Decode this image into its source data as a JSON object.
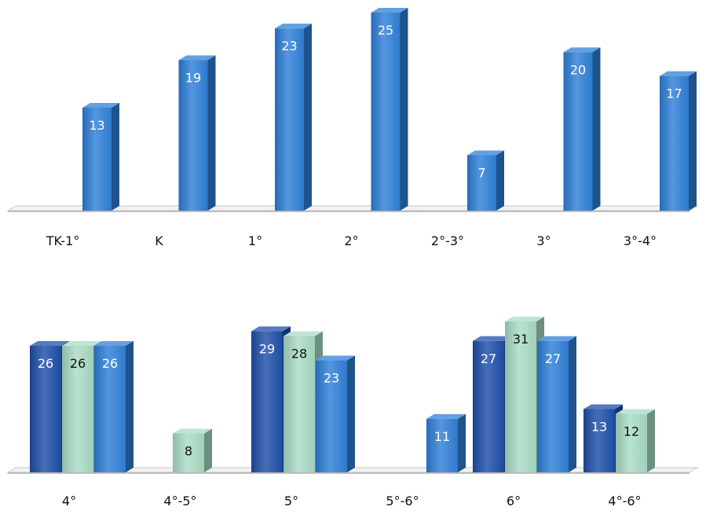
{
  "chart_data": [
    {
      "type": "bar",
      "categories": [
        "TK-1°",
        "K",
        "1°",
        "2°",
        "2°-3°",
        "3°",
        "3°-4°"
      ],
      "values": [
        13,
        19,
        23,
        25,
        7,
        20,
        17
      ],
      "ylim": [
        0,
        25
      ],
      "grid": false,
      "legend": "none",
      "colors": {
        "bar": "#2f7fd8"
      }
    },
    {
      "type": "bar",
      "categories": [
        "4°",
        "4°-5°",
        "5°",
        "5°-6°",
        "6°",
        "4°-6°"
      ],
      "series": [
        {
          "values": [
            26,
            null,
            29,
            null,
            27,
            13
          ],
          "color": "#1f4fa8"
        },
        {
          "values": [
            26,
            8,
            28,
            null,
            31,
            12
          ],
          "color": "#a8dcc4"
        },
        {
          "values": [
            26,
            null,
            23,
            11,
            27,
            null
          ],
          "color": "#2f7fd8"
        }
      ],
      "ylim": [
        0,
        31
      ],
      "grid": false,
      "legend": "none"
    }
  ]
}
